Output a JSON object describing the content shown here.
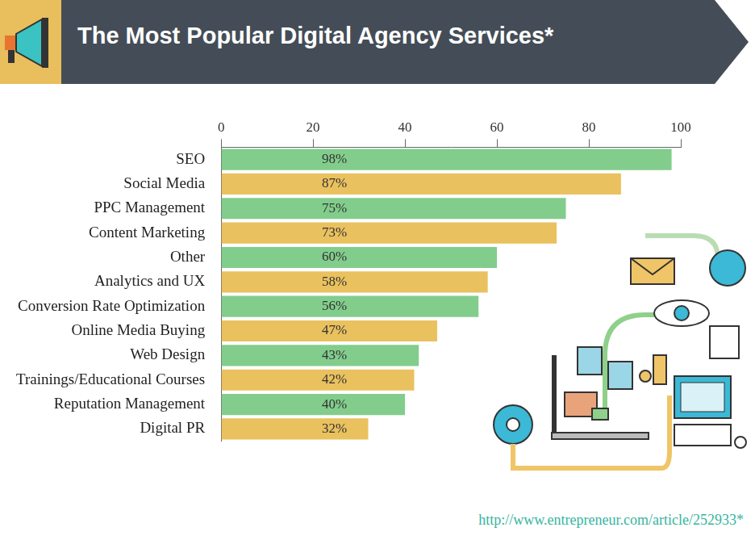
{
  "chart_data": {
    "type": "bar",
    "orientation": "horizontal",
    "title": "The Most Popular Digital Agency Services*",
    "annotations": [
      "http://www.entrepreneur.com/article/252933*"
    ],
    "categories": [
      "SEO",
      "Social Media",
      "PPC Management",
      "Content Marketing",
      "Other",
      "Analytics and UX",
      "Conversion Rate Optimization",
      "Online Media Buying",
      "Web Design",
      "Trainings/Educational Courses",
      "Reputation Management",
      "Digital PR"
    ],
    "values": [
      98,
      87,
      75,
      73,
      60,
      58,
      56,
      47,
      43,
      42,
      40,
      32
    ],
    "value_labels": [
      "98%",
      "87%",
      "75%",
      "73%",
      "60%",
      "58%",
      "56%",
      "47%",
      "43%",
      "42%",
      "40%",
      "32%"
    ],
    "colors": [
      "#82cd8c",
      "#eac15f",
      "#82cd8c",
      "#eac15f",
      "#82cd8c",
      "#eac15f",
      "#82cd8c",
      "#eac15f",
      "#82cd8c",
      "#eac15f",
      "#82cd8c",
      "#eac15f"
    ],
    "xlim": [
      0,
      100
    ],
    "xticks": [
      0,
      20,
      40,
      60,
      80,
      100
    ],
    "grid": false,
    "data_labels": true
  }
}
